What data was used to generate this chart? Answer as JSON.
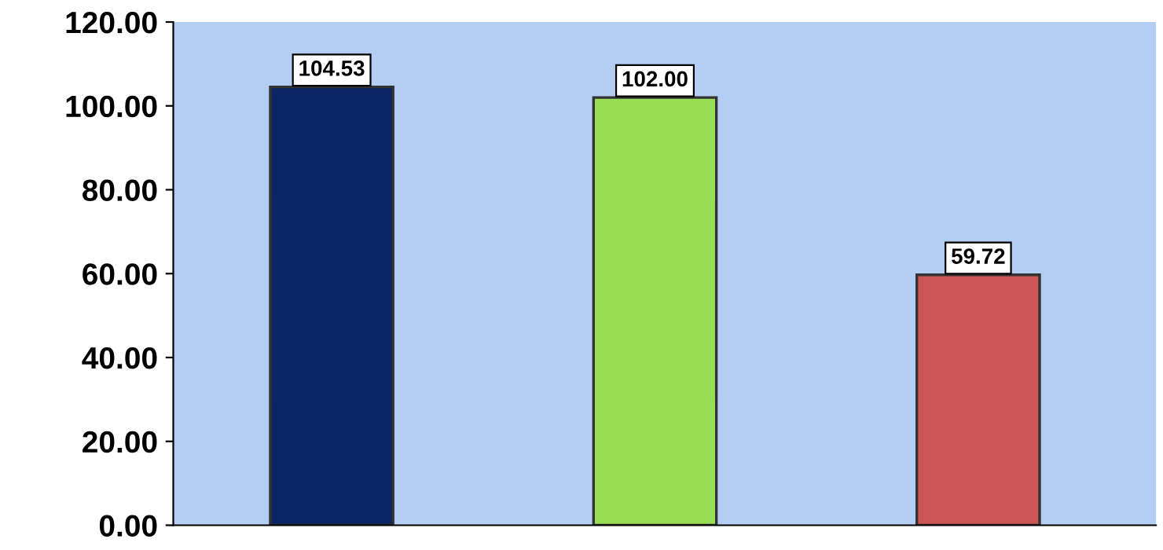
{
  "chart_data": {
    "type": "bar",
    "categories": [
      null,
      null,
      null
    ],
    "values": [
      104.53,
      102.0,
      59.72
    ],
    "colors": [
      "#0a2566",
      "#99dd55",
      "#cc5555"
    ],
    "ylim": [
      0,
      120
    ],
    "yticks": [
      {
        "value": 0,
        "label": "0.00"
      },
      {
        "value": 20,
        "label": "20.00"
      },
      {
        "value": 40,
        "label": "40.00"
      },
      {
        "value": 60,
        "label": "60.00"
      },
      {
        "value": 80,
        "label": "80.00"
      },
      {
        "value": 100,
        "label": "100.00"
      },
      {
        "value": 120,
        "label": "120.00"
      }
    ],
    "value_labels": [
      "104.53",
      "102.00",
      "59.72"
    ]
  }
}
